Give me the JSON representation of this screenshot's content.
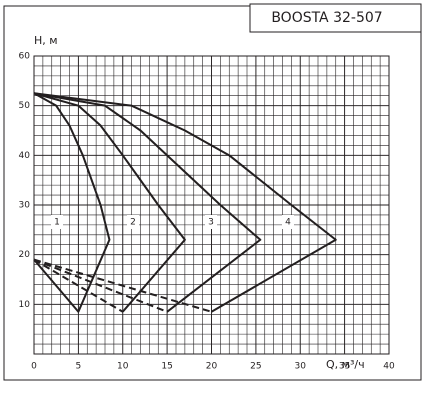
{
  "chart_data": {
    "type": "line",
    "title": "BOOSTA 32-507",
    "x_label": "Q, м³/ч",
    "y_label": "H, м",
    "xlim": [
      0,
      40
    ],
    "ylim": [
      0,
      60
    ],
    "xticks": [
      0,
      5,
      10,
      15,
      20,
      25,
      30,
      35,
      40
    ],
    "yticks": [
      10,
      20,
      30,
      40,
      50,
      60
    ],
    "grid": true,
    "minor_grid_step": {
      "x": 1,
      "y": 2
    },
    "series": [
      {
        "name": "1",
        "color": "#231f20",
        "x": [
          0,
          2.5,
          4,
          5.5,
          7.5,
          8.5,
          5,
          0
        ],
        "values": [
          52.5,
          50,
          46,
          40,
          30,
          23,
          8.5,
          19
        ]
      },
      {
        "name": "2",
        "color": "#231f20",
        "x": [
          0,
          5,
          7.5,
          10,
          14,
          17,
          10
        ],
        "values": [
          52.5,
          50,
          46,
          40,
          30,
          23,
          8.5
        ]
      },
      {
        "name": "3",
        "color": "#231f20",
        "x": [
          0,
          8,
          12,
          15,
          21,
          25.5,
          15
        ],
        "values": [
          52.5,
          50,
          45,
          40,
          30,
          23,
          8.5
        ]
      },
      {
        "name": "4",
        "color": "#231f20",
        "x": [
          0,
          11,
          17,
          22,
          29,
          34,
          20
        ],
        "values": [
          52.5,
          50,
          45,
          40,
          30,
          23,
          8.5
        ]
      },
      {
        "color": "#231f20",
        "dashed": true,
        "x": [
          0,
          10
        ],
        "values": [
          19,
          8.5
        ]
      },
      {
        "color": "#231f20",
        "dashed": true,
        "x": [
          0,
          15
        ],
        "values": [
          19,
          8.5
        ]
      },
      {
        "color": "#231f20",
        "dashed": true,
        "x": [
          0,
          20
        ],
        "values": [
          19,
          8.5
        ]
      }
    ]
  }
}
